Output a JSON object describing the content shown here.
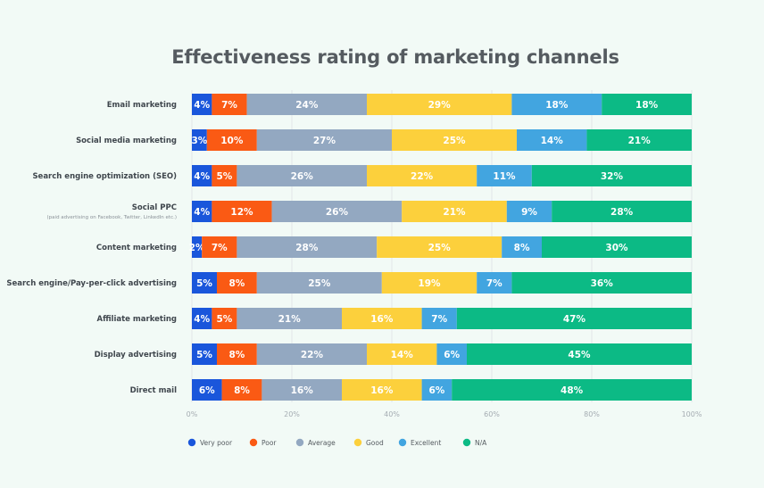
{
  "chart_data": {
    "type": "bar",
    "orientation": "horizontal",
    "stacked": true,
    "normalized": true,
    "title": "Effectiveness rating of marketing channels",
    "categories": [
      "Email marketing",
      "Social media marketing",
      "Search engine optimization (SEO)",
      "Social PPC",
      "Content marketing",
      "Search engine/Pay-per-click advertising",
      "Affiliate marketing",
      "Display advertising",
      "Direct mail"
    ],
    "category_subtitles": {
      "Social PPC": "(paid advertising on Facebook, Twitter, LinkedIn etc.)"
    },
    "series": [
      {
        "name": "Very poor",
        "color": "#1a56db",
        "values": [
          4,
          3,
          4,
          4,
          2,
          5,
          4,
          5,
          6
        ],
        "labels": [
          "4%",
          "3%",
          "4%",
          "4%",
          "2%",
          "5%",
          "4%",
          "5%",
          "6%"
        ]
      },
      {
        "name": "Poor",
        "color": "#fa5a14",
        "values": [
          7,
          10,
          5,
          12,
          7,
          8,
          5,
          8,
          8
        ],
        "labels": [
          "7%",
          "10%",
          "5%",
          "12%",
          "7%",
          "8%",
          "5%",
          "8%",
          "8%"
        ]
      },
      {
        "name": "Average",
        "color": "#93a8c1",
        "values": [
          24,
          27,
          26,
          26,
          28,
          25,
          21,
          22,
          16
        ],
        "labels": [
          "24%",
          "27%",
          "26%",
          "26%",
          "28%",
          "25%",
          "21%",
          "22%",
          "16%"
        ]
      },
      {
        "name": "Good",
        "color": "#fcd03c",
        "values": [
          29,
          25,
          22,
          21,
          25,
          19,
          16,
          14,
          16
        ],
        "labels": [
          "29%",
          "25%",
          "22%",
          "21%",
          "25%",
          "19%",
          "16%",
          "14%",
          "16%"
        ]
      },
      {
        "name": "Excellent",
        "color": "#42a5e0",
        "values": [
          18,
          14,
          11,
          9,
          8,
          7,
          7,
          6,
          6
        ],
        "labels": [
          "18%",
          "14%",
          "11%",
          "9%",
          "8%",
          "7%",
          "7%",
          "6%",
          "6%"
        ]
      },
      {
        "name": "N/A",
        "color": "#0cba85",
        "values": [
          18,
          21,
          32,
          28,
          30,
          36,
          47,
          45,
          48
        ],
        "labels": [
          "18%",
          "21%",
          "32%",
          "28%",
          "30%",
          "36%",
          "47%",
          "45%",
          "48%"
        ]
      }
    ],
    "xlim": [
      0,
      100
    ],
    "x_ticks": [
      "0%",
      "20%",
      "40%",
      "60%",
      "80%",
      "100%"
    ],
    "grid": true,
    "legend_position": "bottom-left"
  }
}
